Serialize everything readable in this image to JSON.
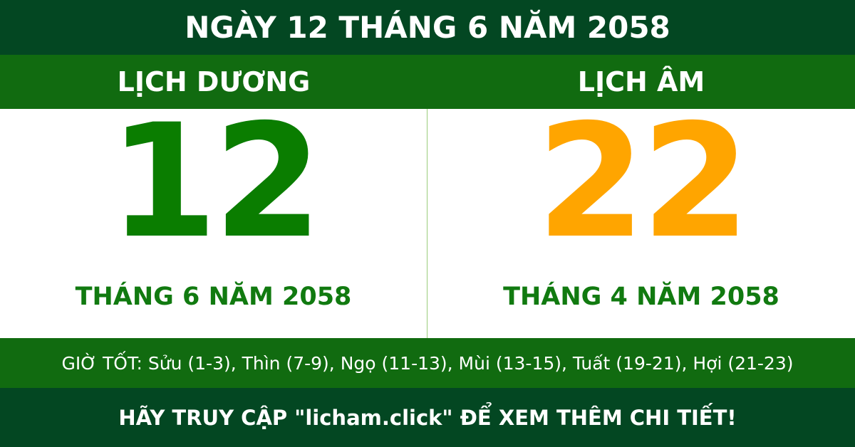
{
  "header": {
    "title": "NGÀY 12 THÁNG 6 NĂM 2058"
  },
  "solar": {
    "label": "LỊCH DƯƠNG",
    "day": "12",
    "month_year": "THÁNG 6 NĂM 2058",
    "color": "#0a7d00"
  },
  "lunar": {
    "label": "LỊCH ÂM",
    "day": "22",
    "month_year": "THÁNG 4 NĂM 2058",
    "color": "#ffa500"
  },
  "good_hours": "GIỜ TỐT: Sửu (1-3), Thìn (7-9), Ngọ (11-13), Mùi (13-15), Tuất (19-21), Hợi (21-23)",
  "footer": {
    "cta": "HÃY TRUY CẬP \"licham.click\" ĐỂ XEM THÊM CHI TIẾT!"
  },
  "colors": {
    "dark_green": "#034722",
    "green": "#116b10",
    "orange": "#ffa500"
  }
}
